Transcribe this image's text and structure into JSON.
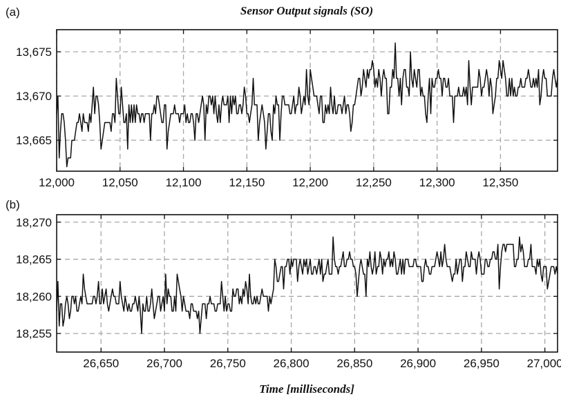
{
  "chart_data": [
    {
      "type": "line",
      "panel_label": "(a)",
      "title": "Sensor Output signals (SO)",
      "xlabel": "",
      "ylabel": "",
      "xlim": [
        12000,
        12395
      ],
      "ylim": [
        13661.5,
        13677.5
      ],
      "xticks": [
        12000,
        12050,
        12100,
        12150,
        12200,
        12250,
        12300,
        12350
      ],
      "xtick_labels": [
        "12,000",
        "12,050",
        "12,100",
        "12,150",
        "12,200",
        "12,250",
        "12,300",
        "12,350"
      ],
      "yticks": [
        13665,
        13670,
        13675
      ],
      "ytick_labels": [
        "13,665",
        "13,670",
        "13,675"
      ],
      "grid": true,
      "series": [
        {
          "anchors": [
            [
              12000,
              13666
            ],
            [
              12005,
              13668
            ],
            [
              12008,
              13662
            ],
            [
              12012,
              13665
            ],
            [
              12020,
              13667
            ],
            [
              12030,
              13667
            ],
            [
              12040,
              13667
            ],
            [
              12050,
              13668
            ],
            [
              12060,
              13668
            ],
            [
              12070,
              13668
            ],
            [
              12080,
              13669
            ],
            [
              12090,
              13668
            ],
            [
              12100,
              13668
            ],
            [
              12110,
              13668
            ],
            [
              12120,
              13669
            ],
            [
              12130,
              13669
            ],
            [
              12140,
              13669
            ],
            [
              12150,
              13669
            ],
            [
              12160,
              13668
            ],
            [
              12170,
              13669
            ],
            [
              12180,
              13669
            ],
            [
              12190,
              13669
            ],
            [
              12200,
              13669
            ],
            [
              12210,
              13669
            ],
            [
              12220,
              13669
            ],
            [
              12230,
              13669
            ],
            [
              12234,
              13669
            ],
            [
              12236,
              13672
            ],
            [
              12250,
              13672
            ],
            [
              12260,
              13672
            ],
            [
              12270,
              13672
            ],
            [
              12280,
              13672
            ],
            [
              12290,
              13671
            ],
            [
              12300,
              13671
            ],
            [
              12306,
              13671
            ],
            [
              12310,
              13670
            ],
            [
              12320,
              13671
            ],
            [
              12330,
              13671
            ],
            [
              12340,
              13671
            ],
            [
              12350,
              13671
            ],
            [
              12360,
              13671
            ],
            [
              12370,
              13672
            ],
            [
              12380,
              13671
            ],
            [
              12395,
              13672
            ]
          ],
          "min": 13662,
          "max": 13677
        }
      ]
    },
    {
      "type": "line",
      "panel_label": "(b)",
      "title": "",
      "xlabel": "Time [milliseconds]",
      "ylabel": "",
      "xlim": [
        26615,
        27010
      ],
      "ylim": [
        18252.5,
        18271
      ],
      "xticks": [
        26650,
        26700,
        26750,
        26800,
        26850,
        26900,
        26950,
        27000
      ],
      "xtick_labels": [
        "26,650",
        "26,700",
        "26,750",
        "26,800",
        "26,850",
        "26,900",
        "26,950",
        "27,000"
      ],
      "yticks": [
        18255,
        18260,
        18265,
        18270
      ],
      "ytick_labels": [
        "18,255",
        "18,260",
        "18,265",
        "18,270"
      ],
      "grid": true,
      "series": [
        {
          "anchors": [
            [
              26615,
              18259
            ],
            [
              26630,
              18259
            ],
            [
              26650,
              18260
            ],
            [
              26670,
              18259
            ],
            [
              26690,
              18259
            ],
            [
              26700,
              18259
            ],
            [
              26720,
              18259
            ],
            [
              26740,
              18259
            ],
            [
              26750,
              18259
            ],
            [
              26760,
              18260
            ],
            [
              26775,
              18260
            ],
            [
              26785,
              18260
            ],
            [
              26788,
              18263
            ],
            [
              26800,
              18264
            ],
            [
              26820,
              18264
            ],
            [
              26840,
              18264
            ],
            [
              26860,
              18264
            ],
            [
              26880,
              18264
            ],
            [
              26900,
              18264
            ],
            [
              26920,
              18264
            ],
            [
              26940,
              18264
            ],
            [
              26950,
              18264
            ],
            [
              26960,
              18265
            ],
            [
              26975,
              18266
            ],
            [
              26990,
              18264
            ],
            [
              27010,
              18264
            ]
          ],
          "min": 18253,
          "max": 18270
        }
      ]
    }
  ]
}
